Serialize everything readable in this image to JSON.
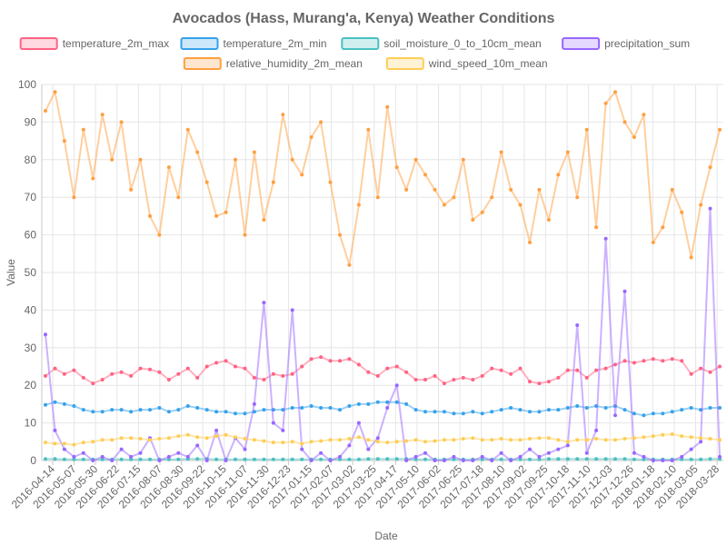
{
  "chart_data": {
    "type": "line",
    "title": "Avocados (Hass, Murang'a, Kenya) Weather Conditions",
    "xlabel": "Date",
    "ylabel": "Value",
    "ylim": [
      0,
      100
    ],
    "y_ticks": [
      0,
      10,
      20,
      30,
      40,
      50,
      60,
      70,
      80,
      90,
      100
    ],
    "grid": true,
    "legend_position": "top",
    "x_start": "2016-04-14",
    "x_end": "2018-04-07",
    "x_tick_labels": [
      "2016-04-14",
      "2016-05-07",
      "2016-05-30",
      "2016-06-22",
      "2016-07-15",
      "2016-08-07",
      "2016-08-30",
      "2016-09-22",
      "2016-10-15",
      "2016-11-07",
      "2016-11-30",
      "2016-12-23",
      "2017-01-15",
      "2017-02-07",
      "2017-03-02",
      "2017-03-25",
      "2017-04-17",
      "2017-05-10",
      "2017-06-02",
      "2017-06-25",
      "2017-07-18",
      "2017-08-10",
      "2017-09-02",
      "2017-09-25",
      "2017-10-18",
      "2017-11-10",
      "2017-12-03",
      "2017-12-26",
      "2018-01-18",
      "2018-02-10",
      "2018-03-05",
      "2018-03-28"
    ],
    "series": [
      {
        "name": "temperature_2m_max",
        "color": "#ff6384",
        "fill": "rgba(255,99,132,0.5)",
        "values": [
          22.5,
          24.5,
          23,
          24,
          22,
          20.5,
          21.5,
          23,
          23.5,
          22.5,
          24.5,
          24.2,
          23.5,
          21.5,
          23,
          24.5,
          22,
          25,
          26,
          26.5,
          25,
          24.5,
          22,
          21.5,
          23,
          22.5,
          23,
          25,
          27,
          27.5,
          26.5,
          26.5,
          27,
          25.5,
          23.5,
          22.5,
          24.5,
          25,
          23.5,
          21.5,
          21.5,
          22.5,
          20.5,
          21.5,
          22,
          21.5,
          22.5,
          24.5,
          24,
          23,
          24.5,
          21,
          20.5,
          21,
          22,
          24,
          24,
          22,
          24,
          24.5,
          25.5,
          26.5,
          26,
          26.5,
          27,
          26.5,
          27,
          26.5,
          23,
          24.5,
          23.5,
          25
        ]
      },
      {
        "name": "temperature_2m_min",
        "color": "#36a2eb",
        "fill": "rgba(54,162,235,0.5)",
        "values": [
          14.8,
          15.5,
          15,
          14.5,
          13.5,
          13,
          13,
          13.5,
          13.5,
          13,
          13.5,
          13.5,
          14,
          13,
          13.5,
          14.5,
          14,
          13.5,
          13,
          13,
          12.5,
          12.5,
          13,
          13.5,
          13.5,
          13.5,
          14,
          14,
          14.5,
          14,
          14,
          13.5,
          14.5,
          15,
          15,
          15.5,
          15.5,
          15.5,
          15,
          13.5,
          13,
          13,
          13,
          12.5,
          12.5,
          13,
          12.5,
          13,
          13.5,
          14,
          13.5,
          13,
          13,
          13.5,
          13.5,
          14,
          14.5,
          14,
          14.5,
          14,
          14.5,
          13.5,
          12.5,
          12,
          12.5,
          12.5,
          13,
          13.5,
          14,
          13.5,
          14,
          14
        ]
      },
      {
        "name": "soil_moisture_0_to_10cm_mean",
        "color": "#4bc0c0",
        "fill": "rgba(75,192,192,0.5)",
        "values": [
          0.4,
          0.4,
          0.3,
          0.3,
          0.3,
          0.3,
          0.3,
          0.3,
          0.3,
          0.3,
          0.3,
          0.3,
          0.3,
          0.3,
          0.3,
          0.4,
          0.4,
          0.4,
          0.3,
          0.3,
          0.3,
          0.3,
          0.3,
          0.3,
          0.3,
          0.3,
          0.3,
          0.3,
          0.3,
          0.3,
          0.3,
          0.3,
          0.3,
          0.3,
          0.4,
          0.4,
          0.4,
          0.4,
          0.4,
          0.3,
          0.3,
          0.3,
          0.3,
          0.3,
          0.3,
          0.3,
          0.3,
          0.3,
          0.3,
          0.3,
          0.3,
          0.3,
          0.3,
          0.4,
          0.4,
          0.4,
          0.4,
          0.4,
          0.4,
          0.4,
          0.4,
          0.4,
          0.3,
          0.3,
          0.3,
          0.3,
          0.3,
          0.3,
          0.3,
          0.3,
          0.4,
          0.4
        ]
      },
      {
        "name": "precipitation_sum",
        "color": "#9966ff",
        "fill": "rgba(153,102,255,0.5)",
        "values": [
          33.5,
          8,
          3,
          1,
          2,
          0,
          1,
          0,
          3,
          1,
          2,
          6,
          0,
          1,
          2,
          1,
          4,
          0,
          8,
          0,
          6,
          3,
          15,
          42,
          10,
          8,
          40,
          3,
          0,
          2,
          0,
          1,
          4,
          10,
          3,
          6,
          14,
          20,
          0,
          1,
          2,
          0,
          0,
          1,
          0,
          0,
          1,
          0,
          2,
          0,
          1,
          3,
          1,
          2,
          3,
          4,
          36,
          2,
          8,
          59,
          12,
          45,
          2,
          1,
          0,
          0,
          0,
          1,
          3,
          5,
          67,
          1
        ]
      },
      {
        "name": "relative_humidity_2m_mean",
        "color": "#ff9f40",
        "fill": "rgba(255,159,64,0.5)",
        "values": [
          93,
          98,
          85,
          70,
          88,
          75,
          92,
          80,
          90,
          72,
          80,
          65,
          60,
          78,
          70,
          88,
          82,
          74,
          65,
          66,
          80,
          60,
          82,
          64,
          74,
          92,
          80,
          76,
          86,
          90,
          74,
          60,
          52,
          68,
          88,
          70,
          94,
          78,
          72,
          80,
          76,
          72,
          68,
          70,
          80,
          64,
          66,
          70,
          82,
          72,
          68,
          58,
          72,
          64,
          76,
          82,
          70,
          88,
          62,
          95,
          98,
          90,
          86,
          92,
          58,
          62,
          72,
          66,
          54,
          68,
          78,
          88
        ]
      },
      {
        "name": "wind_speed_10m_mean",
        "color": "#ffcd56",
        "fill": "rgba(255,205,86,0.5)",
        "values": [
          4.8,
          4.5,
          4.5,
          4.2,
          4.8,
          5,
          5.5,
          5.5,
          6,
          6,
          5.8,
          5.5,
          5.8,
          6,
          6.5,
          6.8,
          6.2,
          6,
          6.5,
          6.8,
          6.2,
          5.8,
          5.5,
          5.2,
          4.8,
          4.8,
          5,
          4.5,
          5,
          5.2,
          5.5,
          5.5,
          5.8,
          6.2,
          5.5,
          5,
          4.8,
          5,
          5.2,
          5.5,
          5,
          5.2,
          5.5,
          5.5,
          5.8,
          6,
          5.5,
          5.5,
          5.8,
          5.5,
          5.5,
          5.8,
          6,
          6,
          5.5,
          5,
          5.5,
          5.5,
          5.8,
          5.5,
          5.5,
          5.8,
          6,
          6.2,
          6.5,
          6.8,
          7,
          6.5,
          6.2,
          6,
          5.8,
          5.5
        ]
      }
    ]
  }
}
